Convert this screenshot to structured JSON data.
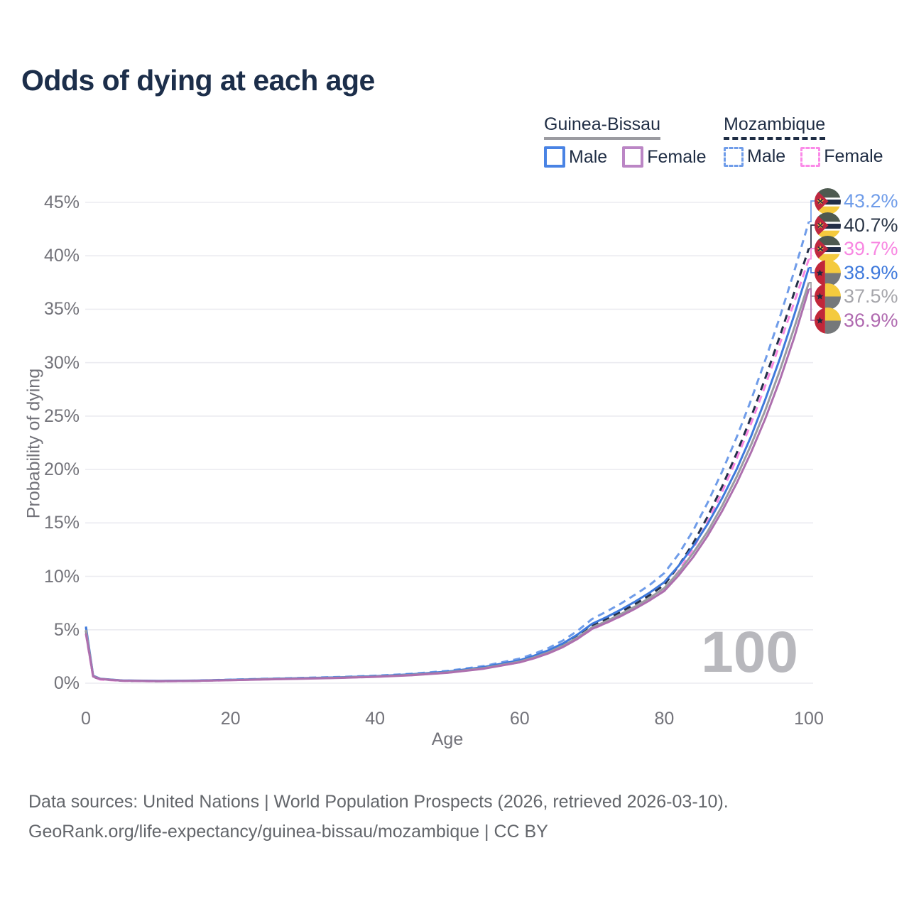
{
  "title": "Odds of dying at each age",
  "watermark": "100",
  "legend": {
    "groups": [
      {
        "name": "Guinea-Bissau",
        "line_style": "solid",
        "underline_color": "#9b9ba1",
        "items": [
          {
            "label": "Male",
            "color": "#4983e4",
            "dashed": false
          },
          {
            "label": "Female",
            "color": "#bb86c5",
            "dashed": false
          }
        ]
      },
      {
        "name": "Mozambique",
        "line_style": "dashed",
        "underline_color": "#1f2d44",
        "items": [
          {
            "label": "Male",
            "color": "#6f9ce9",
            "dashed": true
          },
          {
            "label": "Female",
            "color": "#fb8ae8",
            "dashed": true
          }
        ]
      }
    ]
  },
  "footer": {
    "line1": "Data sources: United Nations | World Population Prospects (2026, retrieved 2026-03-10).",
    "line2": "GeoRank.org/life-expectancy/guinea-bissau/mozambique | CC BY"
  },
  "chart_data": {
    "type": "line",
    "title": "Odds of dying at each age",
    "xlabel": "Age",
    "ylabel": "Probability of dying",
    "xlim": [
      0,
      100
    ],
    "ylim": [
      0,
      45
    ],
    "x_ticks": [
      0,
      20,
      40,
      60,
      80,
      100
    ],
    "y_ticks": [
      0,
      5,
      10,
      15,
      20,
      25,
      30,
      35,
      40,
      45
    ],
    "y_tick_suffix": "%",
    "grid": "horizontal",
    "legend_position": "top-right",
    "x": [
      0,
      1,
      2,
      5,
      10,
      15,
      20,
      25,
      30,
      35,
      40,
      45,
      50,
      55,
      60,
      62,
      64,
      66,
      68,
      70,
      72,
      74,
      76,
      78,
      80,
      82,
      84,
      86,
      88,
      90,
      92,
      94,
      96,
      98,
      100
    ],
    "series": [
      {
        "name": "Mozambique Male",
        "country": "Mozambique",
        "sex": "Male",
        "flag": "mozambique",
        "color": "#6f9ce9",
        "label_color": "#6f9ce9",
        "dashed": true,
        "end_label": "43.2%",
        "end_value": 43.2,
        "values": [
          5.2,
          0.65,
          0.4,
          0.25,
          0.2,
          0.24,
          0.33,
          0.42,
          0.5,
          0.58,
          0.7,
          0.88,
          1.15,
          1.6,
          2.3,
          2.75,
          3.3,
          4.0,
          4.9,
          6.0,
          6.7,
          7.45,
          8.3,
          9.2,
          10.3,
          12.1,
          14.3,
          16.9,
          19.8,
          23.0,
          26.5,
          30.3,
          34.3,
          38.6,
          43.2
        ]
      },
      {
        "name": "Mozambique (both sexes)",
        "country": "Mozambique",
        "sex": "Both",
        "flag": "mozambique",
        "color": "#243049",
        "label_color": "#2b3647",
        "dashed": true,
        "end_label": "40.7%",
        "end_value": 40.7,
        "values": [
          4.9,
          0.6,
          0.37,
          0.23,
          0.18,
          0.22,
          0.3,
          0.38,
          0.45,
          0.53,
          0.64,
          0.8,
          1.05,
          1.45,
          2.08,
          2.49,
          2.98,
          3.61,
          4.41,
          5.38,
          6.0,
          6.67,
          7.42,
          8.24,
          9.2,
          11.0,
          13.1,
          15.6,
          18.4,
          21.5,
          24.9,
          28.6,
          32.5,
          36.6,
          40.7
        ]
      },
      {
        "name": "Mozambique Female",
        "country": "Mozambique",
        "sex": "Female",
        "flag": "mozambique",
        "color": "#f887e2",
        "label_color": "#f887e2",
        "dashed": true,
        "end_label": "39.7%",
        "end_value": 39.7,
        "values": [
          4.6,
          0.55,
          0.34,
          0.21,
          0.17,
          0.2,
          0.28,
          0.36,
          0.43,
          0.5,
          0.6,
          0.75,
          0.98,
          1.36,
          1.95,
          2.33,
          2.8,
          3.4,
          4.15,
          5.05,
          5.63,
          6.27,
          7.0,
          7.8,
          8.75,
          10.5,
          12.6,
          15.1,
          17.9,
          21.0,
          24.3,
          27.9,
          31.8,
          35.7,
          39.7
        ]
      },
      {
        "name": "Guinea-Bissau Male",
        "country": "Guinea-Bissau",
        "sex": "Male",
        "flag": "guinea-bissau",
        "color": "#3e79dc",
        "label_color": "#3e79dc",
        "dashed": false,
        "end_label": "38.9%",
        "end_value": 38.9,
        "values": [
          5.3,
          0.7,
          0.42,
          0.26,
          0.21,
          0.24,
          0.31,
          0.4,
          0.47,
          0.55,
          0.66,
          0.83,
          1.08,
          1.5,
          2.15,
          2.57,
          3.08,
          3.73,
          4.55,
          5.55,
          6.18,
          6.88,
          7.65,
          8.48,
          9.45,
          11.0,
          12.8,
          14.9,
          17.3,
          20.0,
          23.1,
          26.6,
          30.4,
          34.5,
          38.9
        ]
      },
      {
        "name": "Guinea-Bissau (both sexes)",
        "country": "Guinea-Bissau",
        "sex": "Both",
        "flag": "guinea-bissau",
        "color": "#9c9ca1",
        "label_color": "#a6a6ab",
        "dashed": false,
        "end_label": "37.5%",
        "end_value": 37.5,
        "values": [
          5.0,
          0.66,
          0.4,
          0.24,
          0.19,
          0.22,
          0.29,
          0.37,
          0.44,
          0.51,
          0.62,
          0.78,
          1.02,
          1.41,
          2.02,
          2.41,
          2.89,
          3.5,
          4.28,
          5.22,
          5.81,
          6.47,
          7.19,
          7.99,
          8.9,
          10.4,
          12.2,
          14.2,
          16.6,
          19.3,
          22.3,
          25.6,
          29.3,
          33.3,
          37.5
        ]
      },
      {
        "name": "Guinea-Bissau Female",
        "country": "Guinea-Bissau",
        "sex": "Female",
        "flag": "guinea-bissau",
        "color": "#ad6fae",
        "label_color": "#b06ab0",
        "dashed": false,
        "end_label": "36.9%",
        "end_value": 36.9,
        "values": [
          4.65,
          0.62,
          0.38,
          0.23,
          0.18,
          0.21,
          0.28,
          0.35,
          0.42,
          0.49,
          0.59,
          0.74,
          0.97,
          1.35,
          1.95,
          2.33,
          2.79,
          3.38,
          4.14,
          5.08,
          5.65,
          6.28,
          6.98,
          7.76,
          8.63,
          10.1,
          11.8,
          13.8,
          16.1,
          18.7,
          21.6,
          24.8,
          28.4,
          32.4,
          36.9
        ]
      }
    ]
  }
}
